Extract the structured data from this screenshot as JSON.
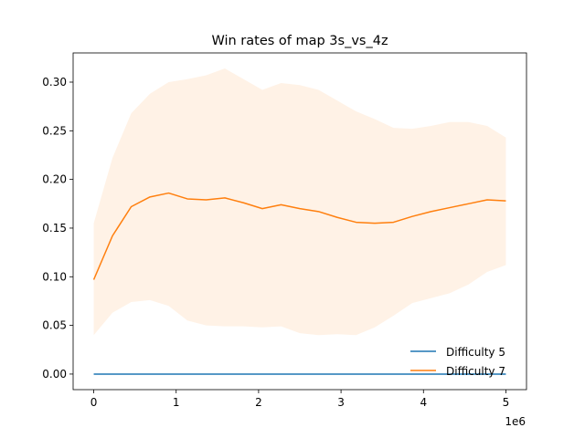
{
  "chart_data": {
    "type": "line",
    "title": "Win rates of map 3s_vs_4z",
    "xlabel": "",
    "ylabel": "",
    "x_offset_label": "1e6",
    "xlim": [
      -0.25,
      5.25
    ],
    "ylim": [
      -0.016,
      0.33
    ],
    "x_ticks": [
      0,
      1,
      2,
      3,
      4,
      5
    ],
    "x_tick_labels": [
      "0",
      "1",
      "2",
      "3",
      "4",
      "5"
    ],
    "y_ticks": [
      0.0,
      0.05,
      0.1,
      0.15,
      0.2,
      0.25,
      0.3
    ],
    "y_tick_labels": [
      "0.00",
      "0.05",
      "0.10",
      "0.15",
      "0.20",
      "0.25",
      "0.30"
    ],
    "grid": false,
    "legend_position": "lower-right",
    "x": [
      0,
      0.227,
      0.455,
      0.682,
      0.909,
      1.136,
      1.364,
      1.591,
      1.818,
      2.045,
      2.273,
      2.5,
      2.727,
      2.955,
      3.182,
      3.409,
      3.636,
      3.864,
      4.091,
      4.318,
      4.545,
      4.773,
      5.0
    ],
    "series": [
      {
        "name": "Difficulty 5",
        "color": "#1f77b4",
        "values": [
          0,
          0,
          0,
          0,
          0,
          0,
          0,
          0,
          0,
          0,
          0,
          0,
          0,
          0,
          0,
          0,
          0,
          0,
          0,
          0,
          0,
          0,
          0
        ]
      },
      {
        "name": "Difficulty 7",
        "color": "#ff7f0e",
        "values": [
          0.097,
          0.142,
          0.172,
          0.182,
          0.186,
          0.18,
          0.179,
          0.181,
          0.176,
          0.17,
          0.174,
          0.17,
          0.167,
          0.161,
          0.156,
          0.155,
          0.156,
          0.162,
          0.167,
          0.171,
          0.175,
          0.179,
          0.178
        ],
        "band_upper": [
          0.155,
          0.222,
          0.268,
          0.288,
          0.3,
          0.303,
          0.307,
          0.314,
          0.303,
          0.292,
          0.299,
          0.297,
          0.292,
          0.281,
          0.27,
          0.262,
          0.253,
          0.252,
          0.255,
          0.259,
          0.259,
          0.255,
          0.243
        ],
        "band_lower": [
          0.04,
          0.063,
          0.074,
          0.076,
          0.07,
          0.055,
          0.05,
          0.049,
          0.049,
          0.048,
          0.049,
          0.042,
          0.04,
          0.041,
          0.04,
          0.048,
          0.06,
          0.073,
          0.078,
          0.083,
          0.092,
          0.105,
          0.112
        ]
      }
    ]
  }
}
